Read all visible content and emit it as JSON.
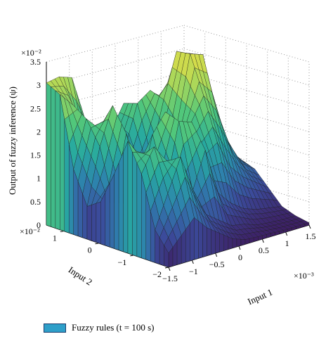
{
  "chart_data": {
    "type": "surface3d",
    "zlabel": "Output of fuzzy inference (ψ)",
    "zscale_label": "×10⁻²",
    "zticks": [
      "0",
      "0.5",
      "1",
      "1.5",
      "2",
      "2.5",
      "3",
      "3.5"
    ],
    "zlim": [
      0,
      3.5
    ],
    "x_label": "Input 1",
    "x_scale_label": "×10⁻³",
    "x_ticks": [
      "−1.5",
      "−1",
      "−0.5",
      "0",
      "0.5",
      "1",
      "1.5"
    ],
    "x_lim": [
      -1.5,
      1.5
    ],
    "y_label": "Input 2",
    "y_scale_label": "×10⁻²",
    "y_ticks": [
      "1",
      "0",
      "−1",
      "−2"
    ],
    "y_lim": [
      -2,
      1.5
    ],
    "grid": true,
    "colormap": [
      "#3c1b5e",
      "#3b4b9b",
      "#2e7fae",
      "#27a9a0",
      "#52c77a",
      "#aad85a",
      "#e3dd45"
    ],
    "surface_z": [
      [
        3.05,
        3.1,
        3.0,
        2.05,
        1.4,
        1.2,
        1.3,
        1.1,
        0.9,
        0.8,
        0.75,
        0.7
      ],
      [
        2.9,
        2.6,
        1.6,
        1.4,
        1.8,
        2.3,
        1.6,
        1.3,
        1.0,
        0.9,
        0.85,
        0.8
      ],
      [
        1.4,
        2.4,
        2.1,
        1.1,
        1.5,
        2.4,
        2.6,
        1.8,
        1.6,
        1.4,
        1.1,
        0.95
      ],
      [
        0.7,
        1.9,
        2.7,
        1.8,
        0.9,
        1.4,
        2.5,
        3.45,
        3.3,
        2.2,
        1.3,
        1.0
      ],
      [
        0.9,
        0.8,
        2.2,
        1.4,
        0.7,
        1.1,
        2.1,
        3.5,
        3.4,
        2.0,
        1.2,
        0.9
      ],
      [
        1.6,
        0.9,
        1.1,
        2.2,
        2.6,
        1.3,
        2.2,
        2.7,
        2.3,
        1.5,
        1.0,
        0.8
      ],
      [
        2.4,
        2.0,
        0.8,
        1.2,
        2.5,
        2.4,
        1.6,
        1.8,
        1.2,
        0.9,
        0.7,
        0.5
      ],
      [
        1.8,
        2.3,
        1.9,
        0.9,
        1.1,
        1.9,
        0.9,
        0.6,
        0.4,
        0.3,
        0.25,
        0.2
      ],
      [
        0.7,
        1.4,
        2.1,
        1.3,
        0.7,
        0.5,
        0.3,
        0.25,
        0.15,
        0.12,
        0.1,
        0.1
      ],
      [
        0.3,
        0.6,
        0.9,
        0.6,
        0.4,
        0.2,
        0.1,
        0.08,
        0.07,
        0.05,
        0.05,
        0.05
      ]
    ]
  },
  "legend": {
    "label": "Fuzzy rules (t = 100 s)"
  }
}
